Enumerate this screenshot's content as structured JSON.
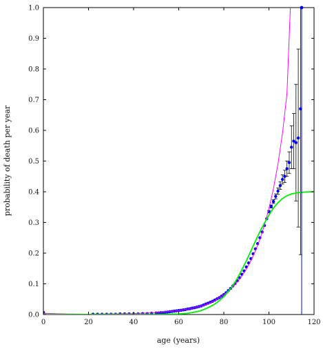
{
  "chart_data": {
    "type": "scatter",
    "title": "",
    "xlabel": "age (years)",
    "ylabel": "probability of death per year",
    "xlim": [
      0,
      120
    ],
    "ylim": [
      0,
      1.0
    ],
    "x_ticks": [
      {
        "value": 0,
        "label": "0"
      },
      {
        "value": 20,
        "label": "20"
      },
      {
        "value": 40,
        "label": "40"
      },
      {
        "value": 60,
        "label": "60"
      },
      {
        "value": 80,
        "label": "80"
      },
      {
        "value": 100,
        "label": "100"
      },
      {
        "value": 120,
        "label": "120"
      }
    ],
    "y_ticks": [
      {
        "value": 0.0,
        "label": "0.0"
      },
      {
        "value": 0.1,
        "label": "0.1"
      },
      {
        "value": 0.2,
        "label": "0.2"
      },
      {
        "value": 0.3,
        "label": "0.3"
      },
      {
        "value": 0.4,
        "label": "0.4"
      },
      {
        "value": 0.5,
        "label": "0.5"
      },
      {
        "value": 0.6,
        "label": "0.6"
      },
      {
        "value": 0.7,
        "label": "0.7"
      },
      {
        "value": 0.8,
        "label": "0.8"
      },
      {
        "value": 0.9,
        "label": "0.9"
      },
      {
        "value": 1.0,
        "label": "1.0"
      }
    ],
    "grid": false,
    "legend": "none",
    "series": [
      {
        "kind": "points",
        "color": "#0000ff",
        "x": [
          0,
          22,
          24,
          26,
          28,
          30,
          32,
          34,
          36,
          38,
          40,
          42,
          44,
          46,
          48,
          50,
          51,
          52,
          53,
          54,
          55,
          56,
          57,
          58,
          59,
          60,
          61,
          62,
          63,
          64,
          65,
          66,
          67,
          68,
          69,
          70,
          71,
          72,
          73,
          74,
          75,
          76,
          77,
          78,
          79,
          80,
          81,
          82,
          83,
          84,
          85,
          86,
          87,
          88,
          89,
          90,
          91,
          92,
          93,
          94,
          95,
          96,
          97,
          98,
          99,
          100,
          101,
          102,
          103,
          104,
          105,
          106,
          107,
          108,
          109,
          110,
          111,
          112,
          113,
          114
        ],
        "y": [
          0.007,
          0.001,
          0.001,
          0.001,
          0.001,
          0.001,
          0.001,
          0.002,
          0.002,
          0.002,
          0.002,
          0.002,
          0.003,
          0.003,
          0.004,
          0.005,
          0.005,
          0.006,
          0.006,
          0.007,
          0.008,
          0.009,
          0.01,
          0.011,
          0.012,
          0.013,
          0.014,
          0.015,
          0.016,
          0.018,
          0.019,
          0.021,
          0.022,
          0.024,
          0.026,
          0.028,
          0.031,
          0.034,
          0.037,
          0.04,
          0.043,
          0.047,
          0.051,
          0.055,
          0.06,
          0.065,
          0.071,
          0.078,
          0.085,
          0.093,
          0.101,
          0.11,
          0.12,
          0.131,
          0.142,
          0.155,
          0.168,
          0.182,
          0.198,
          0.214,
          0.231,
          0.25,
          0.269,
          0.29,
          0.312,
          0.335,
          0.352,
          0.368,
          0.385,
          0.402,
          0.42,
          0.44,
          0.45,
          0.475,
          0.495,
          0.545,
          0.565,
          0.56,
          0.575,
          0.67
        ],
        "errors": [
          0,
          0,
          0,
          0,
          0,
          0,
          0,
          0,
          0,
          0,
          0,
          0,
          0,
          0,
          0,
          0,
          0,
          0,
          0,
          0,
          0,
          0,
          0,
          0,
          0,
          0,
          0,
          0,
          0,
          0,
          0,
          0,
          0,
          0,
          0,
          0,
          0,
          0,
          0,
          0,
          0,
          0,
          0,
          0,
          0,
          0,
          0,
          0,
          0,
          0,
          0,
          0,
          0,
          0,
          0,
          0,
          0,
          0,
          0,
          0,
          0,
          0,
          0,
          0,
          0,
          0.004,
          0.005,
          0.006,
          0.008,
          0.01,
          0.012,
          0.015,
          0.02,
          0.025,
          0.035,
          0.07,
          0.09,
          0.19,
          0.29,
          0.475
        ]
      },
      {
        "kind": "line",
        "color": "#ff00ff",
        "x": [
          0,
          10,
          20,
          30,
          40,
          50,
          55,
          60,
          65,
          70,
          72,
          74,
          76,
          78,
          80,
          82,
          84,
          86,
          88,
          90,
          92,
          94,
          96,
          98,
          100,
          102,
          104,
          106,
          108,
          109.5
        ],
        "y": [
          0.004,
          0.002,
          0.001,
          0.002,
          0.003,
          0.006,
          0.009,
          0.013,
          0.019,
          0.028,
          0.033,
          0.039,
          0.046,
          0.055,
          0.064,
          0.076,
          0.09,
          0.106,
          0.125,
          0.148,
          0.175,
          0.207,
          0.245,
          0.291,
          0.345,
          0.41,
          0.49,
          0.59,
          0.72,
          1.0
        ]
      },
      {
        "kind": "line",
        "color": "#00ee00",
        "x": [
          0,
          20,
          40,
          50,
          55,
          60,
          64,
          68,
          70,
          72,
          74,
          76,
          78,
          80,
          82,
          84,
          86,
          88,
          90,
          92,
          94,
          96,
          98,
          100,
          102,
          104,
          106,
          108,
          110,
          113,
          116,
          120
        ],
        "y": [
          0.0,
          0.0,
          0.0,
          0.0,
          0.001,
          0.002,
          0.004,
          0.009,
          0.013,
          0.019,
          0.026,
          0.034,
          0.045,
          0.058,
          0.075,
          0.095,
          0.118,
          0.146,
          0.175,
          0.207,
          0.239,
          0.27,
          0.298,
          0.324,
          0.347,
          0.364,
          0.378,
          0.387,
          0.393,
          0.397,
          0.399,
          0.4
        ]
      },
      {
        "kind": "vline",
        "color": "#0000ff",
        "x": 114.5,
        "y": [
          0.0,
          1.0
        ]
      }
    ]
  }
}
